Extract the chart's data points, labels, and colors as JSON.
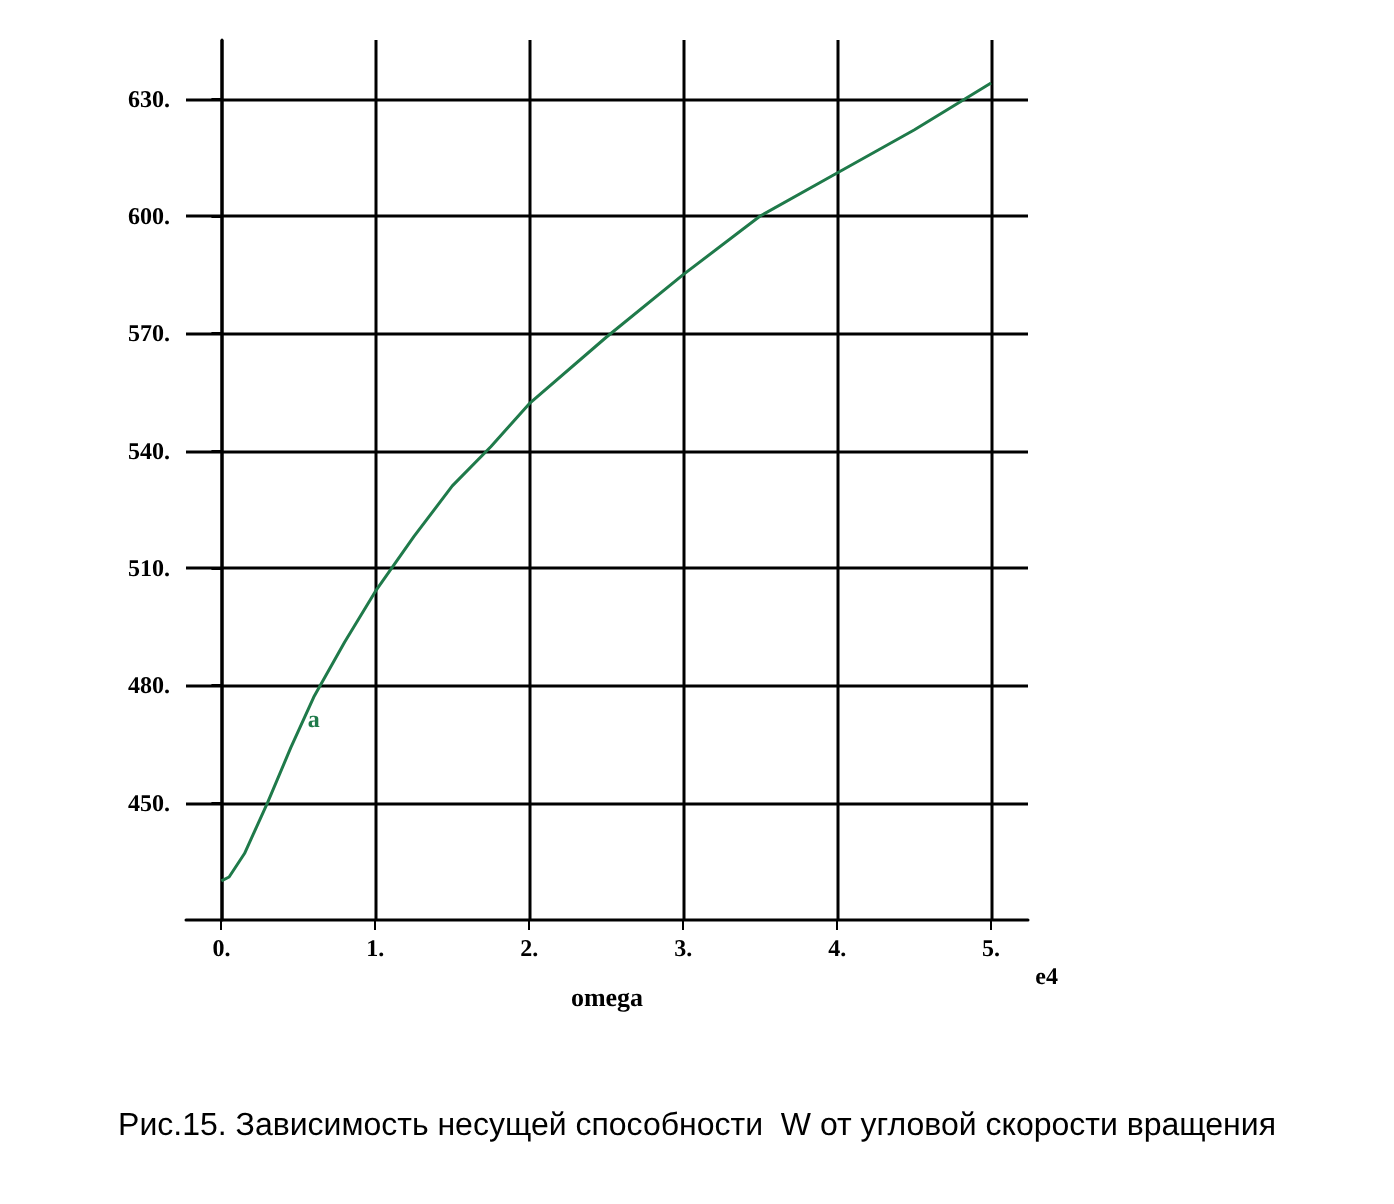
{
  "chart_data": {
    "type": "line",
    "title": "Рис.15. Зависимость несущей способности  W от угловой скорости вращения",
    "xlabel": "omega",
    "annotations": [
      {
        "text": "a",
        "x": 0.6,
        "y": 477
      },
      "e4"
    ],
    "x": [
      0,
      0.05,
      0.15,
      0.3,
      0.45,
      0.6,
      0.8,
      1.0,
      1.25,
      1.5,
      1.75,
      2.0,
      2.5,
      3.0,
      3.5,
      4.0,
      4.5,
      5.0
    ],
    "series": [
      {
        "color": "#1f7a4a",
        "values": [
          430,
          431,
          437,
          450,
          464,
          477,
          491,
          504,
          518,
          531,
          541,
          552,
          569,
          585,
          600,
          611,
          622,
          634
        ]
      }
    ],
    "xlim": [
      -0.23,
      5.24
    ],
    "ylim": [
      420,
      645
    ],
    "xticks": [
      {
        "value": 0,
        "label": "0."
      },
      {
        "value": 1,
        "label": "1."
      },
      {
        "value": 2,
        "label": "2."
      },
      {
        "value": 3,
        "label": "3."
      },
      {
        "value": 4,
        "label": "4."
      },
      {
        "value": 5,
        "label": "5."
      }
    ],
    "yticks": [
      {
        "value": 450,
        "label": "450."
      },
      {
        "value": 480,
        "label": "480."
      },
      {
        "value": 510,
        "label": "510."
      },
      {
        "value": 540,
        "label": "540."
      },
      {
        "value": 570,
        "label": "570."
      },
      {
        "value": 600,
        "label": "600."
      },
      {
        "value": 630,
        "label": "630."
      }
    ],
    "grid": true,
    "marker": "none",
    "line_style": "solid"
  }
}
